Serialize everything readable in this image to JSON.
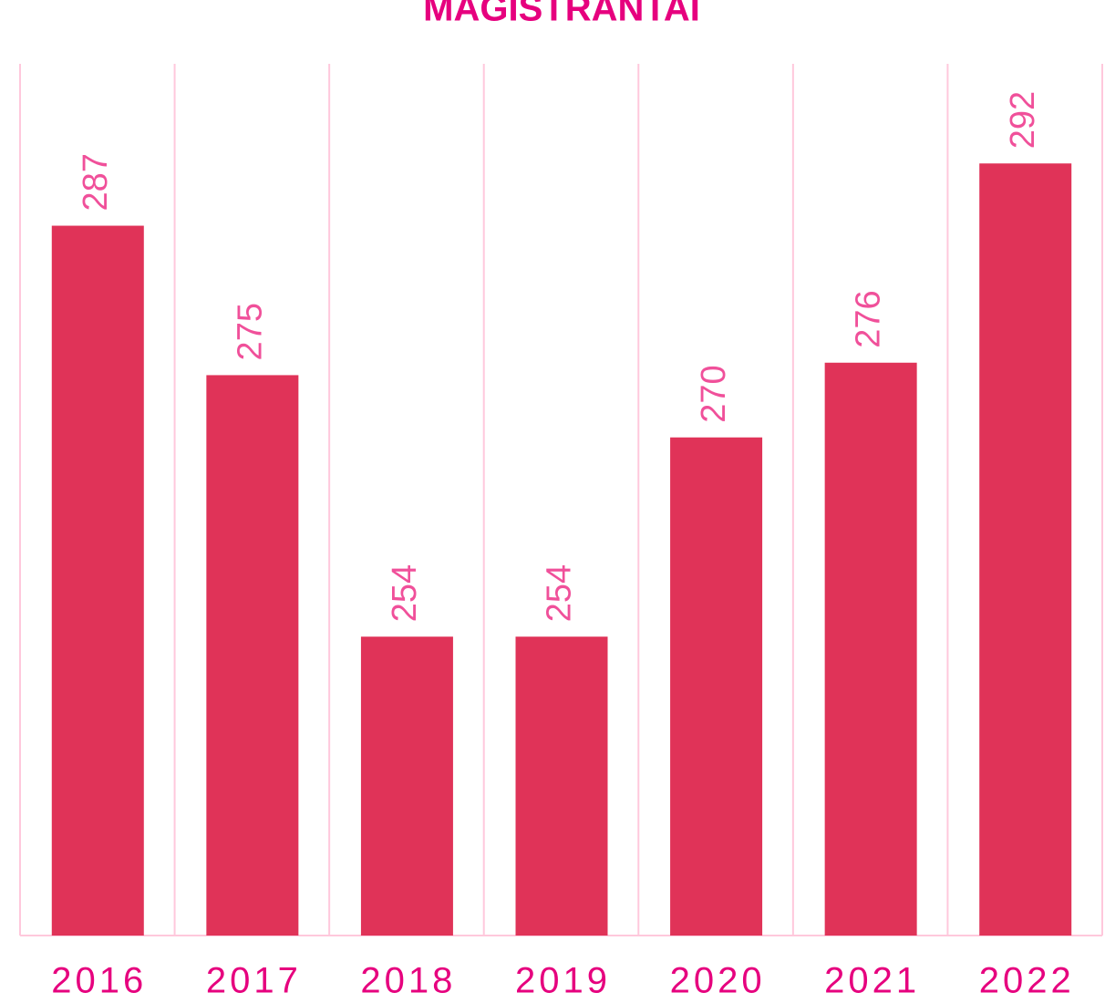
{
  "chart_data": {
    "type": "bar",
    "title": "MAGISTRANTAI",
    "categories": [
      "2016",
      "2017",
      "2018",
      "2019",
      "2020",
      "2021",
      "2022"
    ],
    "values": [
      287,
      275,
      254,
      254,
      270,
      276,
      292
    ],
    "color": "#e03358",
    "ylim": [
      230,
      300
    ]
  }
}
